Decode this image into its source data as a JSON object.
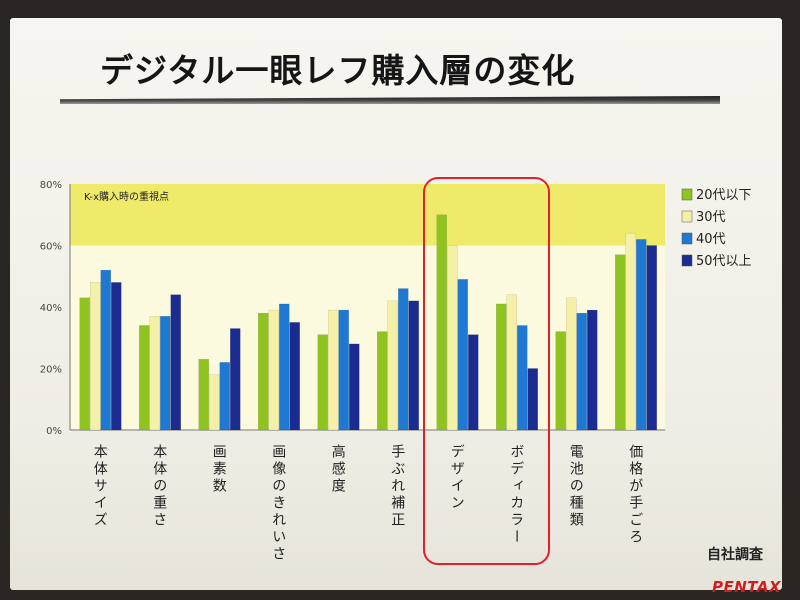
{
  "title": "デジタル一眼レフ購入層の変化",
  "source_note": "自社調査",
  "brand": "PENTAX",
  "chart_data": {
    "type": "bar",
    "annotation": "K-x購入時の重視点",
    "categories": [
      "本体サイズ",
      "本体の重さ",
      "画素数",
      "画像のきれいさ",
      "高感度",
      "手ぶれ補正",
      "デザイン",
      "ボディカラー",
      "電池の種類",
      "価格が手ごろ"
    ],
    "series": [
      {
        "name": "20代以下",
        "color": "#8fc31f",
        "values": [
          43,
          34,
          23,
          38,
          31,
          32,
          70,
          41,
          32,
          57
        ]
      },
      {
        "name": "30代",
        "color": "#f4f0a8",
        "values": [
          48,
          37,
          18,
          39,
          39,
          42,
          60,
          44,
          43,
          64
        ]
      },
      {
        "name": "40代",
        "color": "#1f78d1",
        "values": [
          52,
          37,
          22,
          41,
          39,
          46,
          49,
          34,
          38,
          62
        ]
      },
      {
        "name": "50代以上",
        "color": "#1b2b8f",
        "values": [
          48,
          44,
          33,
          35,
          28,
          42,
          31,
          20,
          39,
          60
        ]
      }
    ],
    "ylim": [
      0,
      80
    ],
    "yticks": [
      "0%",
      "20%",
      "40%",
      "60%",
      "80%"
    ],
    "highlight": [
      "デザイン",
      "ボディカラー"
    ],
    "grid": false,
    "legend_position": "right"
  }
}
